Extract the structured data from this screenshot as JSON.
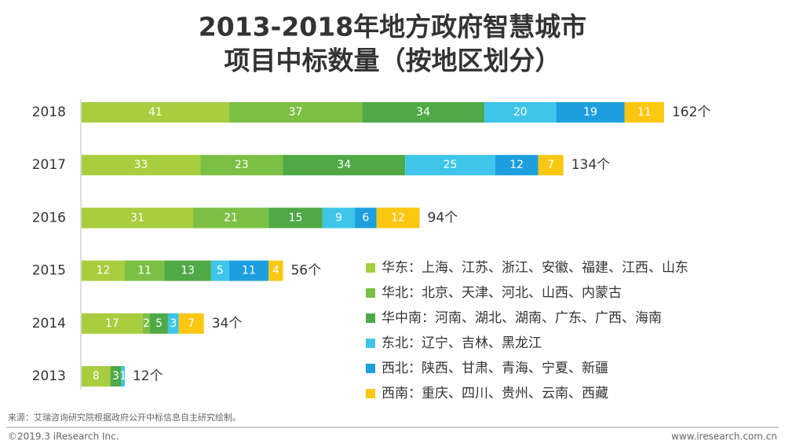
{
  "chart_data": {
    "type": "stacked-bar-horizontal",
    "title": [
      "2013-2018年地方政府智慧城市",
      "项目中标数量（按地区划分）"
    ],
    "categories": [
      "2018",
      "2017",
      "2016",
      "2015",
      "2014",
      "2013"
    ],
    "series": [
      {
        "name": "华东：上海、江苏、浙江、安徽、福建、江西、山东",
        "color": "#a8cd3e",
        "values": [
          41,
          33,
          31,
          12,
          17,
          8
        ]
      },
      {
        "name": "华北：北京、天津、河北、山西、内蒙古",
        "color": "#7cbf45",
        "values": [
          37,
          23,
          21,
          11,
          2,
          null
        ]
      },
      {
        "name": "华中南：河南、湖北、湖南、广东、广西、海南",
        "color": "#4fa946",
        "values": [
          34,
          34,
          15,
          13,
          5,
          3
        ]
      },
      {
        "name": "东北：辽宁、吉林、黑龙江",
        "color": "#3ec5e9",
        "values": [
          20,
          25,
          9,
          5,
          3,
          1
        ]
      },
      {
        "name": "西北：陕西、甘肃、青海、宁夏、新疆",
        "color": "#1d9fdf",
        "values": [
          19,
          12,
          6,
          11,
          null,
          null
        ]
      },
      {
        "name": "西南：重庆、四川、贵州、云南、西藏",
        "color": "#fcc711",
        "values": [
          11,
          7,
          12,
          4,
          7,
          null
        ]
      }
    ],
    "totals": [
      162,
      134,
      94,
      56,
      34,
      12
    ],
    "total_labels": [
      "162个",
      "134个",
      "94个",
      "56个",
      "34个",
      "12个"
    ],
    "source": "来源：艾瑞咨询研究院根据政府公开中标信息自主研究绘制。",
    "copyright": "©2019.3 iResearch Inc.",
    "website": "www.iresearch.com.cn"
  }
}
